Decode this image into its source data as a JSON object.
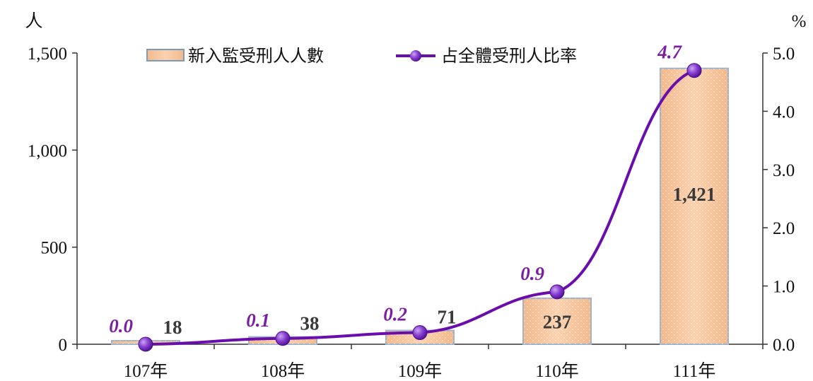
{
  "chart_data": {
    "type": "bar",
    "categories": [
      "107年",
      "108年",
      "109年",
      "110年",
      "111年"
    ],
    "series": [
      {
        "name": "新入監受刑人人數",
        "type": "bar",
        "axis": "left",
        "values": [
          18,
          38,
          71,
          237,
          1421
        ],
        "labels": [
          "18",
          "38",
          "71",
          "237",
          "1,421"
        ]
      },
      {
        "name": "占全體受刑人比率",
        "type": "line",
        "axis": "right",
        "values": [
          0.0,
          0.1,
          0.2,
          0.9,
          4.7
        ],
        "labels": [
          "0.0",
          "0.1",
          "0.2",
          "0.9",
          "4.7"
        ]
      }
    ],
    "left_axis": {
      "unit": "人",
      "ylim": [
        0,
        1500
      ],
      "ticks": [
        0,
        500,
        1000,
        1500
      ],
      "tick_labels": [
        "0",
        "500",
        "1,000",
        "1,500"
      ]
    },
    "right_axis": {
      "unit": "%",
      "ylim": [
        0,
        5
      ],
      "ticks": [
        0,
        1,
        2,
        3,
        4,
        5
      ],
      "tick_labels": [
        "0.0",
        "1.0",
        "2.0",
        "3.0",
        "4.0",
        "5.0"
      ]
    },
    "grid": false,
    "legend_position": "top-center",
    "colors": {
      "bar_fill": "#f9c79f",
      "bar_border": "#9eb3c8",
      "line": "#6a0dad",
      "marker": "#7b2cbf",
      "line_label": "#7b1fa2"
    }
  }
}
